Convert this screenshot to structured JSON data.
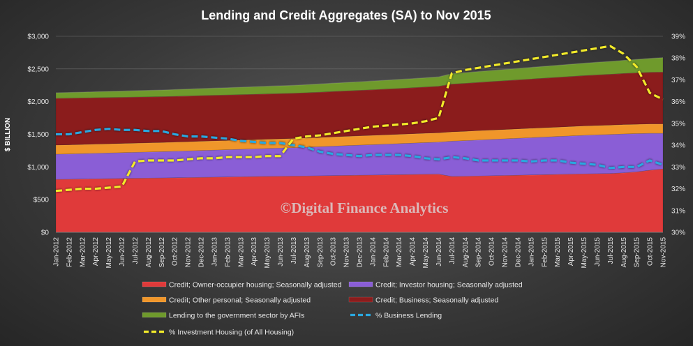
{
  "chart_data": {
    "type": "area",
    "title": "Lending and Credit Aggregates (SA) to Nov 2015",
    "ylabel_left": "$ BILLION",
    "left_axis": {
      "min": 0,
      "max": 3000,
      "ticks": [
        {
          "value": 0,
          "label": "$0"
        },
        {
          "value": 500,
          "label": "$500"
        },
        {
          "value": 1000,
          "label": "$1,000"
        },
        {
          "value": 1500,
          "label": "$1,500"
        },
        {
          "value": 2000,
          "label": "$2,000"
        },
        {
          "value": 2500,
          "label": "$2,500"
        },
        {
          "value": 3000,
          "label": "$3,000"
        }
      ]
    },
    "right_axis": {
      "min": 30,
      "max": 39,
      "ticks": [
        {
          "value": 30,
          "label": "30%"
        },
        {
          "value": 31,
          "label": "31%"
        },
        {
          "value": 32,
          "label": "32%"
        },
        {
          "value": 33,
          "label": "33%"
        },
        {
          "value": 34,
          "label": "34%"
        },
        {
          "value": 35,
          "label": "35%"
        },
        {
          "value": 36,
          "label": "36%"
        },
        {
          "value": 37,
          "label": "37%"
        },
        {
          "value": 38,
          "label": "38%"
        },
        {
          "value": 39,
          "label": "39%"
        }
      ]
    },
    "categories": [
      "Jan-2012",
      "Feb-2012",
      "Mar-2012",
      "Apr-2012",
      "May-2012",
      "Jun-2012",
      "Jul-2012",
      "Aug-2012",
      "Sep-2012",
      "Oct-2012",
      "Nov-2012",
      "Dec-2012",
      "Jan-2013",
      "Feb-2013",
      "Mar-2013",
      "Apr-2013",
      "May-2013",
      "Jun-2013",
      "Jul-2013",
      "Aug-2013",
      "Sep-2013",
      "Oct-2013",
      "Nov-2013",
      "Dec-2013",
      "Jan-2014",
      "Feb-2014",
      "Mar-2014",
      "Apr-2014",
      "May-2014",
      "Jun-2014",
      "Jul-2014",
      "Aug-2014",
      "Sep-2014",
      "Oct-2014",
      "Nov-2014",
      "Dec-2014",
      "Jan-2015",
      "Feb-2015",
      "Mar-2015",
      "Apr-2015",
      "May-2015",
      "Jun-2015",
      "Jul-2015",
      "Aug-2015",
      "Sep-2015",
      "Oct-2015",
      "Nov-2015"
    ],
    "stacked_series": [
      {
        "name": "Credit; Owner-occupier housing; Seasonally adjusted",
        "color": "#e03a3a",
        "values": [
          810,
          812,
          815,
          818,
          821,
          824,
          827,
          830,
          832,
          835,
          838,
          841,
          844,
          847,
          850,
          853,
          856,
          858,
          860,
          862,
          865,
          868,
          871,
          874,
          876,
          879,
          882,
          885,
          888,
          890,
          855,
          858,
          862,
          866,
          870,
          874,
          878,
          882,
          886,
          890,
          894,
          897,
          900,
          910,
          925,
          950,
          970
        ]
      },
      {
        "name": "Credit; Investor housing; Seasonally adjusted",
        "color": "#8a5ed6",
        "values": [
          385,
          387,
          389,
          391,
          393,
          395,
          397,
          399,
          402,
          405,
          408,
          411,
          414,
          417,
          420,
          423,
          427,
          431,
          435,
          440,
          445,
          450,
          455,
          460,
          465,
          470,
          475,
          480,
          485,
          490,
          540,
          545,
          550,
          555,
          560,
          565,
          570,
          575,
          580,
          585,
          590,
          594,
          597,
          595,
          585,
          565,
          545
        ]
      },
      {
        "name": "Credit; Other personal; Seasonally adjusted",
        "color": "#f0962a",
        "values": [
          140,
          140,
          140,
          141,
          141,
          141,
          141,
          141,
          141,
          141,
          141,
          142,
          142,
          142,
          142,
          142,
          142,
          142,
          142,
          142,
          142,
          143,
          143,
          143,
          143,
          143,
          143,
          143,
          143,
          143,
          143,
          143,
          144,
          144,
          144,
          144,
          144,
          144,
          144,
          144,
          144,
          144,
          144,
          144,
          144,
          144,
          144
        ]
      },
      {
        "name": "Credit; Business; Seasonally adjusted",
        "color": "#8b1c1c",
        "values": [
          715,
          714,
          712,
          710,
          708,
          706,
          705,
          703,
          701,
          700,
          699,
          698,
          697,
          696,
          695,
          694,
          693,
          692,
          691,
          692,
          693,
          694,
          695,
          696,
          698,
          700,
          702,
          705,
          708,
          712,
          730,
          734,
          738,
          742,
          746,
          750,
          754,
          758,
          762,
          766,
          770,
          774,
          778,
          782,
          786,
          790,
          794
        ]
      },
      {
        "name": "Lending to the government sector by AFIs",
        "color": "#6f9a2c",
        "values": [
          85,
          87,
          89,
          91,
          93,
          95,
          97,
          99,
          101,
          103,
          105,
          107,
          109,
          111,
          113,
          115,
          117,
          119,
          121,
          123,
          125,
          127,
          129,
          131,
          133,
          135,
          137,
          139,
          141,
          143,
          160,
          163,
          166,
          169,
          172,
          175,
          178,
          181,
          184,
          187,
          190,
          193,
          196,
          200,
          205,
          212,
          220
        ]
      }
    ],
    "line_series": [
      {
        "name": "% Business Lending",
        "color": "#2aa8e0",
        "axis": "right",
        "values": [
          34.5,
          34.5,
          34.6,
          34.7,
          34.75,
          34.7,
          34.7,
          34.65,
          34.65,
          34.5,
          34.4,
          34.4,
          34.35,
          34.3,
          34.2,
          34.15,
          34.1,
          34.1,
          34.0,
          33.9,
          33.7,
          33.6,
          33.55,
          33.5,
          33.55,
          33.55,
          33.55,
          33.5,
          33.4,
          33.35,
          33.45,
          33.4,
          33.3,
          33.3,
          33.3,
          33.3,
          33.25,
          33.3,
          33.3,
          33.2,
          33.15,
          33.1,
          32.95,
          33.0,
          33.0,
          33.3,
          33.1
        ]
      },
      {
        "name": "% Investment Housing (of All Housing)",
        "color": "#f2ea2a",
        "axis": "right",
        "values": [
          31.9,
          31.95,
          32.0,
          32.0,
          32.05,
          32.1,
          33.25,
          33.3,
          33.3,
          33.3,
          33.35,
          33.4,
          33.4,
          33.45,
          33.45,
          33.45,
          33.5,
          33.5,
          34.3,
          34.4,
          34.45,
          34.55,
          34.65,
          34.75,
          34.85,
          34.9,
          34.95,
          35.0,
          35.1,
          35.25,
          37.3,
          37.45,
          37.55,
          37.65,
          37.75,
          37.85,
          37.95,
          38.05,
          38.15,
          38.25,
          38.35,
          38.45,
          38.55,
          38.2,
          37.6,
          36.4,
          36.1
        ]
      }
    ]
  },
  "legend": [
    {
      "label": "Credit; Owner-occupier housing; Seasonally adjusted",
      "color": "#e03a3a",
      "kind": "area"
    },
    {
      "label": "Credit; Investor housing; Seasonally adjusted",
      "color": "#8a5ed6",
      "kind": "area"
    },
    {
      "label": "Credit; Other personal; Seasonally adjusted",
      "color": "#f0962a",
      "kind": "area"
    },
    {
      "label": "Credit; Business; Seasonally adjusted",
      "color": "#8b1c1c",
      "kind": "area"
    },
    {
      "label": "Lending to the government sector by AFIs",
      "color": "#6f9a2c",
      "kind": "area"
    },
    {
      "label": "% Business Lending",
      "color": "#2aa8e0",
      "kind": "dash-line"
    },
    {
      "label": "% Investment Housing (of All Housing)",
      "color": "#f2ea2a",
      "kind": "dash-line"
    }
  ],
  "watermark": "©Digital Finance Analytics"
}
